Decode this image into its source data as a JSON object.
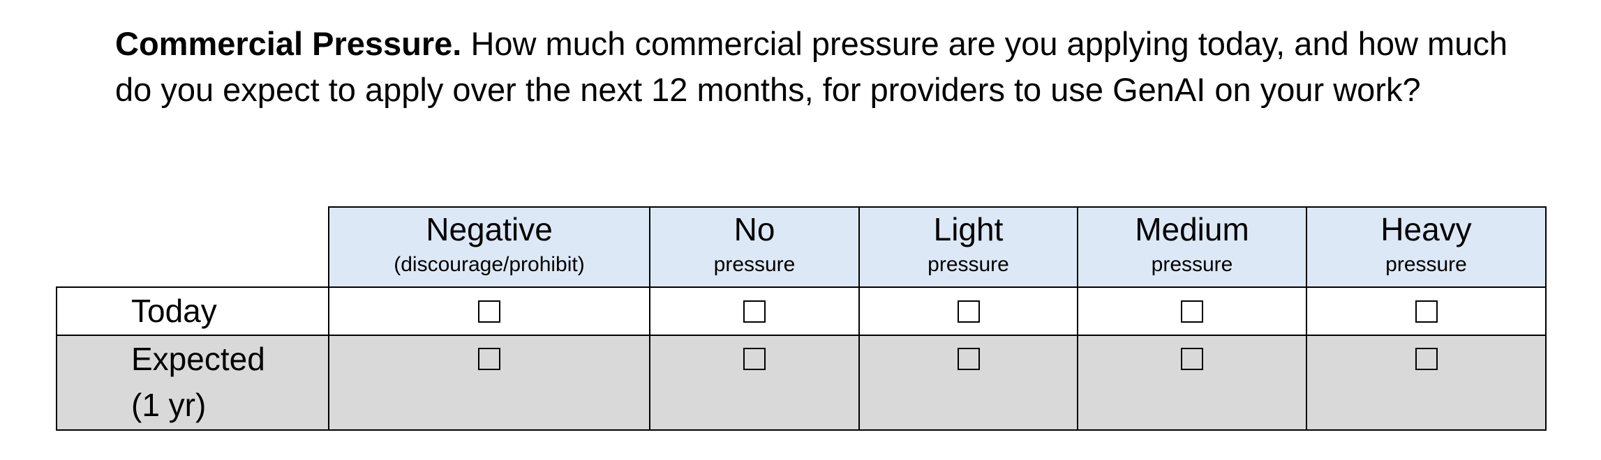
{
  "question": {
    "title": "Commercial Pressure.",
    "text": "How much commercial pressure are you applying today, and how much do you expect to apply over the next 12 months, for providers to use GenAI on your work?"
  },
  "table": {
    "columns": [
      {
        "main": "Negative",
        "sub": "(discourage/prohibit)"
      },
      {
        "main": "No",
        "sub": "pressure"
      },
      {
        "main": "Light",
        "sub": "pressure"
      },
      {
        "main": "Medium",
        "sub": "pressure"
      },
      {
        "main": "Heavy",
        "sub": "pressure"
      }
    ],
    "rows": [
      {
        "label_line1": "Today",
        "label_line2": "",
        "checked": [
          false,
          false,
          false,
          false,
          false
        ]
      },
      {
        "label_line1": "Expected",
        "label_line2": "(1 yr)",
        "checked": [
          false,
          false,
          false,
          false,
          false
        ]
      }
    ],
    "colors": {
      "header_bg": "#dde8f6",
      "expected_row_bg": "#d9d9d9",
      "border": "#000000"
    }
  }
}
